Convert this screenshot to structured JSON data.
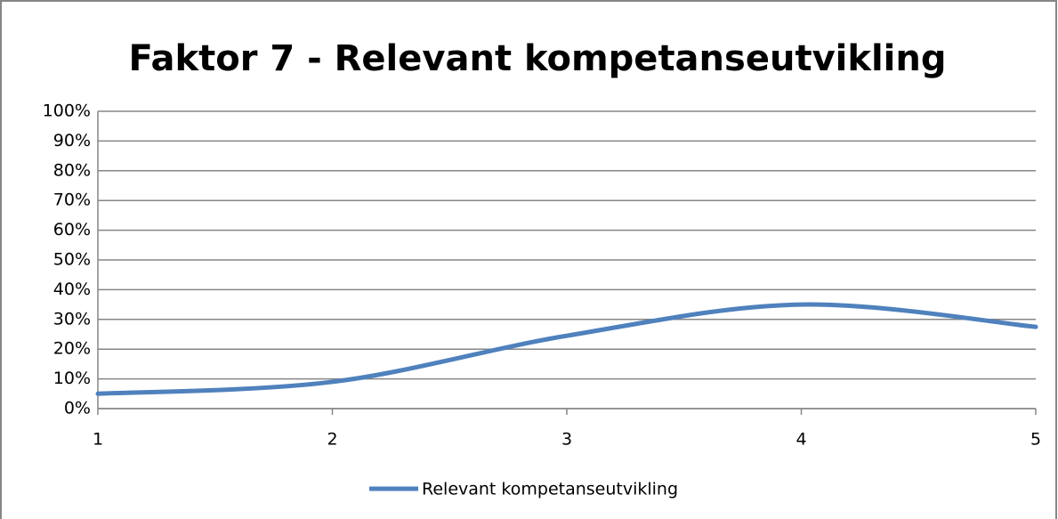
{
  "chart_data": {
    "type": "line",
    "title": "Faktor 7 - Relevant kompetanseutvikling",
    "x": [
      1,
      2,
      3,
      4,
      5
    ],
    "series": [
      {
        "name": "Relevant kompetanseutvikling",
        "color": "#4f81bd",
        "values": [
          5,
          9,
          24.5,
          35,
          27.5
        ]
      }
    ],
    "xlim": [
      1,
      5
    ],
    "xticks": [
      1,
      2,
      3,
      4,
      5
    ],
    "ylim": [
      0,
      100
    ],
    "yticks": [
      {
        "value": 0,
        "label": "0%"
      },
      {
        "value": 10,
        "label": "10%"
      },
      {
        "value": 20,
        "label": "20%"
      },
      {
        "value": 30,
        "label": "30%"
      },
      {
        "value": 40,
        "label": "40%"
      },
      {
        "value": 50,
        "label": "50%"
      },
      {
        "value": 60,
        "label": "60%"
      },
      {
        "value": 70,
        "label": "70%"
      },
      {
        "value": 80,
        "label": "80%"
      },
      {
        "value": 90,
        "label": "90%"
      },
      {
        "value": 100,
        "label": "100%"
      }
    ],
    "grid": true,
    "legend": "bottom",
    "smooth": true
  }
}
